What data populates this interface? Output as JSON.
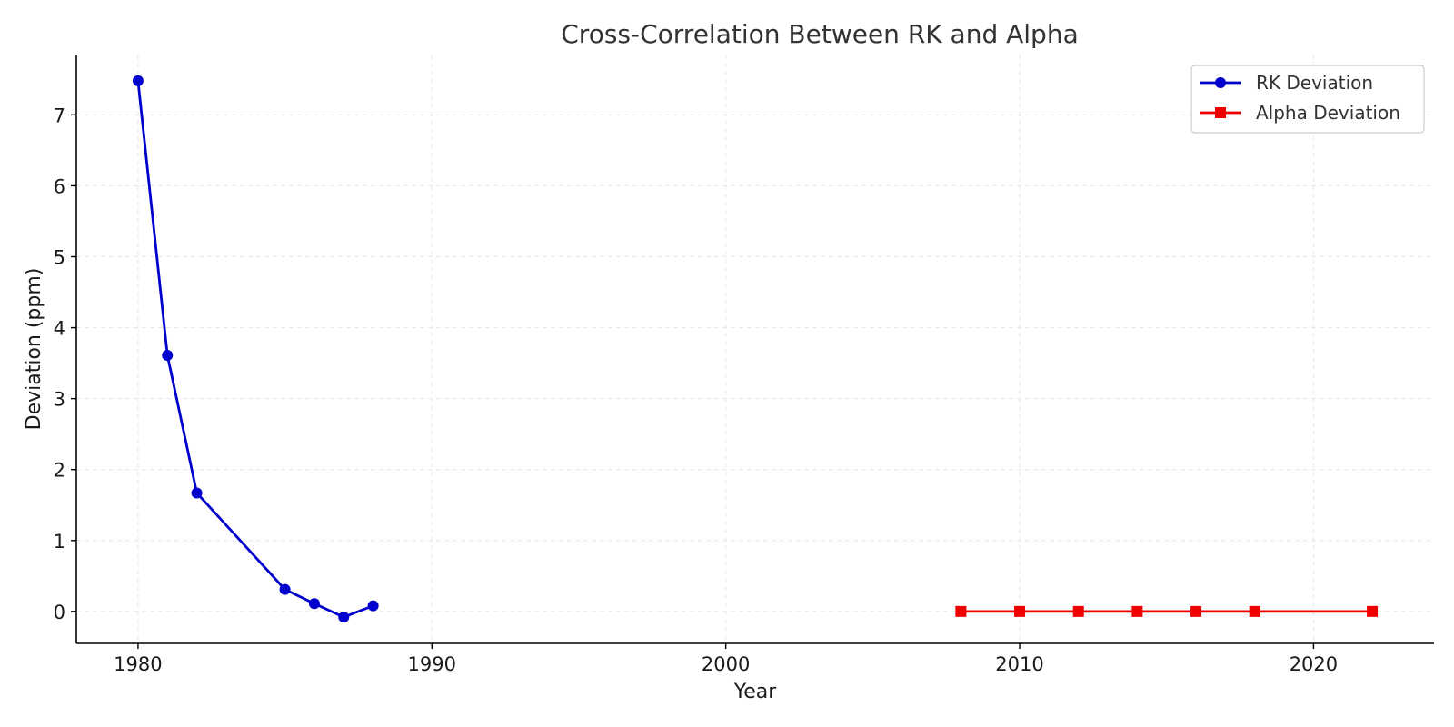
{
  "chart_data": {
    "type": "line",
    "title": "Cross-Correlation Between RK and Alpha",
    "xlabel": "Year",
    "ylabel": "Deviation (ppm)",
    "xlim": [
      1977.9,
      2024.1
    ],
    "ylim": [
      -0.45,
      7.85
    ],
    "xticks": [
      1980,
      1990,
      2000,
      2010,
      2020
    ],
    "yticks": [
      0,
      1,
      2,
      3,
      4,
      5,
      6,
      7
    ],
    "grid": true,
    "legend_position": "top-right",
    "series": [
      {
        "name": "RK Deviation",
        "color": "#0000cc",
        "marker": "circle",
        "x": [
          1980,
          1981,
          1982,
          1985,
          1986,
          1987,
          1988
        ],
        "y": [
          7.48,
          3.61,
          1.67,
          0.31,
          0.11,
          -0.08,
          0.08
        ]
      },
      {
        "name": "Alpha Deviation",
        "color": "#ee0000",
        "marker": "square",
        "x": [
          2008,
          2010,
          2012,
          2014,
          2016,
          2018,
          2022
        ],
        "y": [
          0,
          0,
          0,
          0,
          0,
          0,
          0
        ]
      }
    ]
  }
}
